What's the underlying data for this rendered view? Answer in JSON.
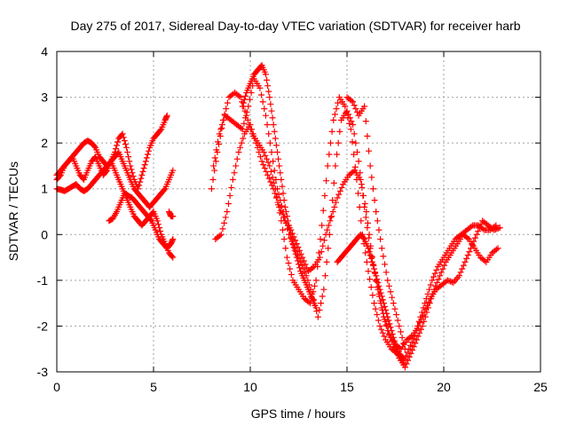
{
  "chart_data": {
    "type": "scatter",
    "title": "Day 275 of 2017, Sidereal Day-to-day VTEC variation (SDTVAR) for receiver harb",
    "xlabel": "GPS time / hours",
    "ylabel": "SDTVAR / TECUs",
    "xlim": [
      0,
      25
    ],
    "ylim": [
      -3,
      4
    ],
    "xticks": [
      "0",
      "5",
      "10",
      "15",
      "20",
      "25"
    ],
    "yticks": [
      "-3",
      "-2",
      "-1",
      "0",
      "1",
      "2",
      "3",
      "4"
    ],
    "grid": true,
    "marker": "+",
    "color": "#ff0000",
    "series": [
      {
        "x": [
          0.0,
          0.2,
          0.4,
          0.6,
          0.8,
          1.0,
          1.2,
          1.4,
          1.6,
          1.8,
          2.0,
          2.2,
          2.4,
          2.6,
          2.8,
          3.0,
          3.2,
          3.4,
          3.6,
          3.8,
          4.0,
          4.2,
          4.4,
          4.6,
          4.8,
          5.0,
          5.2,
          5.4,
          5.6,
          5.7
        ],
        "y": [
          1.3,
          1.4,
          1.5,
          1.6,
          1.7,
          1.8,
          1.9,
          2.0,
          2.05,
          2.0,
          1.9,
          1.7,
          1.6,
          1.5,
          1.6,
          1.8,
          2.1,
          2.2,
          1.9,
          1.5,
          1.2,
          1.0,
          1.3,
          1.6,
          1.9,
          2.1,
          2.2,
          2.3,
          2.5,
          2.6
        ]
      },
      {
        "x": [
          0.0,
          0.2,
          0.4,
          0.6,
          0.8,
          1.0,
          1.2,
          1.4,
          1.6,
          1.8,
          2.0,
          2.2,
          2.4,
          2.6,
          2.8,
          3.0,
          3.2,
          3.4,
          3.6,
          3.8,
          4.0,
          4.2,
          4.4,
          4.6,
          4.8,
          5.0,
          5.2,
          5.4,
          5.6,
          5.8,
          6.0
        ],
        "y": [
          1.2,
          1.3,
          1.5,
          1.6,
          1.7,
          1.5,
          1.3,
          1.2,
          1.4,
          1.6,
          1.7,
          1.5,
          1.3,
          1.4,
          1.6,
          1.7,
          1.8,
          1.6,
          1.4,
          1.2,
          1.0,
          0.9,
          0.8,
          0.7,
          0.6,
          0.7,
          0.8,
          0.9,
          1.0,
          1.2,
          1.4
        ]
      },
      {
        "x": [
          0.0,
          0.2,
          0.4,
          0.6,
          0.8,
          1.0,
          1.2,
          1.4,
          1.6,
          1.8,
          2.0,
          2.2,
          2.4,
          2.6,
          2.8,
          3.0,
          3.2,
          3.4,
          3.6,
          3.8,
          4.0,
          4.2,
          4.4,
          4.6,
          4.8,
          5.0,
          5.2,
          5.4,
          5.6,
          5.8,
          6.0
        ],
        "y": [
          1.0,
          0.98,
          0.95,
          1.0,
          1.05,
          1.1,
          1.0,
          0.95,
          1.0,
          1.1,
          1.2,
          1.3,
          1.4,
          1.5,
          1.6,
          1.4,
          1.2,
          1.0,
          0.8,
          0.6,
          0.4,
          0.3,
          0.2,
          0.3,
          0.4,
          0.5,
          0.3,
          0.0,
          -0.2,
          -0.4,
          -0.5
        ]
      },
      {
        "x": [
          2.7,
          2.9,
          3.1,
          3.3,
          3.5,
          3.7,
          3.9,
          4.1,
          4.3,
          4.5,
          4.7,
          4.9,
          5.1,
          5.3,
          5.5,
          5.7,
          5.9,
          6.0
        ],
        "y": [
          0.3,
          0.35,
          0.5,
          0.7,
          0.9,
          0.85,
          0.8,
          0.7,
          0.6,
          0.5,
          0.4,
          0.3,
          0.1,
          -0.1,
          -0.2,
          -0.3,
          -0.2,
          -0.1
        ]
      },
      {
        "x": [
          5.8,
          5.9,
          6.0
        ],
        "y": [
          0.5,
          0.4,
          0.4
        ]
      },
      {
        "x": [
          8.0,
          8.3,
          8.6,
          8.9,
          9.2,
          9.5,
          9.8,
          10.1,
          10.4,
          10.7,
          11.0,
          11.3,
          11.6,
          11.9,
          12.2,
          12.5,
          12.8,
          13.1,
          13.4,
          13.7,
          14.0,
          14.3,
          14.6,
          14.9,
          15.2,
          15.5,
          15.8,
          16.1,
          16.4,
          16.7,
          17.0,
          17.3,
          17.6,
          17.9,
          18.2,
          18.5,
          18.8,
          19.1,
          19.4,
          19.7,
          20.0,
          20.3,
          20.6,
          20.9,
          21.2,
          21.5,
          21.8,
          22.1,
          22.4,
          22.7
        ],
        "y": [
          1.0,
          1.8,
          2.5,
          3.0,
          3.1,
          3.0,
          2.6,
          2.2,
          2.0,
          1.8,
          1.5,
          1.0,
          0.3,
          -0.5,
          -1.0,
          -1.2,
          -1.4,
          -1.5,
          -1.0,
          0.2,
          1.5,
          2.5,
          3.0,
          2.8,
          2.3,
          1.2,
          0.0,
          -0.8,
          -1.5,
          -2.0,
          -2.3,
          -2.5,
          -2.6,
          -2.8,
          -2.5,
          -2.2,
          -1.8,
          -1.4,
          -1.0,
          -0.7,
          -0.5,
          -0.3,
          -0.1,
          0.0,
          0.1,
          0.2,
          0.2,
          0.1,
          0.1,
          0.2
        ]
      },
      {
        "x": [
          8.1,
          8.4,
          8.7,
          9.0,
          9.3,
          9.6,
          9.9,
          10.2,
          10.5,
          10.8,
          11.1,
          11.4,
          11.7,
          12.0,
          12.3,
          12.6,
          12.9,
          13.2,
          13.5,
          13.8,
          14.1,
          14.4,
          14.7,
          15.0,
          15.3,
          15.6,
          15.9,
          16.2,
          16.5,
          16.8,
          17.1,
          17.4,
          17.7,
          18.0,
          18.3,
          18.6,
          18.9,
          19.2,
          19.5,
          19.8,
          20.1,
          20.4,
          20.7,
          21.0,
          21.3,
          21.6,
          21.9,
          22.2,
          22.5,
          22.8
        ],
        "y": [
          1.5,
          2.2,
          2.6,
          2.5,
          2.4,
          2.3,
          2.8,
          3.4,
          3.2,
          2.6,
          1.8,
          1.0,
          0.5,
          0.0,
          -0.3,
          -0.6,
          -0.9,
          -1.3,
          -1.8,
          -1.2,
          0.0,
          1.5,
          2.5,
          2.7,
          2.4,
          1.6,
          0.6,
          -0.3,
          -1.0,
          -1.6,
          -2.1,
          -2.4,
          -2.7,
          -2.9,
          -2.6,
          -2.3,
          -2.0,
          -1.6,
          -1.2,
          -0.9,
          -0.6,
          -0.4,
          -0.2,
          0.0,
          -0.1,
          -0.3,
          -0.5,
          -0.6,
          -0.4,
          -0.3
        ]
      },
      {
        "x": [
          8.2,
          8.5,
          8.8,
          9.1,
          9.4,
          9.7,
          10.0,
          10.3,
          10.6,
          10.9,
          11.2,
          11.5,
          11.8,
          12.1,
          12.4,
          12.7,
          13.0,
          13.3,
          13.6,
          13.9,
          14.2,
          14.5,
          14.8,
          15.1,
          15.4,
          15.7,
          16.0,
          16.3,
          16.6,
          16.9,
          17.2,
          17.5,
          17.8,
          18.1,
          18.4,
          18.7,
          19.0,
          19.3,
          19.6,
          19.9,
          20.2,
          20.5,
          20.8,
          21.1,
          21.4,
          21.7,
          22.0,
          22.3,
          22.6,
          22.9
        ],
        "y": [
          -0.1,
          0.0,
          0.5,
          1.2,
          1.8,
          2.2,
          2.4,
          2.0,
          1.6,
          1.3,
          1.0,
          0.6,
          0.3,
          0.1,
          -0.2,
          -0.5,
          -0.8,
          -0.7,
          -0.5,
          0.0,
          0.4,
          0.8,
          1.1,
          1.3,
          1.4,
          1.2,
          0.5,
          -0.5,
          -1.2,
          -1.8,
          -2.2,
          -2.4,
          -2.5,
          -2.3,
          -2.2,
          -2.0,
          -1.7,
          -1.4,
          -1.2,
          -1.1,
          -1.0,
          -1.05,
          -0.9,
          -0.6,
          -0.3,
          0.0,
          0.3,
          0.2,
          0.1,
          0.15
        ]
      },
      {
        "x": [
          9.6,
          9.8,
          10.0,
          10.2,
          10.4,
          10.6,
          10.8,
          11.0,
          11.2,
          11.4,
          11.6,
          11.8,
          12.0,
          12.2,
          12.4,
          12.6,
          12.8,
          13.0,
          13.2,
          13.4
        ],
        "y": [
          2.8,
          3.1,
          3.3,
          3.5,
          3.6,
          3.7,
          3.5,
          3.0,
          2.4,
          1.8,
          1.2,
          0.6,
          0.2,
          -0.2,
          -0.5,
          -0.8,
          -1.0,
          -1.2,
          -1.4,
          -1.6
        ]
      },
      {
        "x": [
          14.5,
          14.7,
          14.9,
          15.1,
          15.3,
          15.5,
          15.7,
          15.9,
          16.1,
          16.3,
          16.5,
          16.7,
          16.9,
          17.1,
          17.3,
          17.5,
          17.7,
          17.9
        ],
        "y": [
          -0.6,
          -0.5,
          -0.4,
          -0.3,
          -0.2,
          -0.1,
          0.0,
          -0.1,
          -0.3,
          -0.6,
          -0.9,
          -1.2,
          -1.5,
          -1.8,
          -2.1,
          -2.4,
          -2.6,
          -2.7
        ]
      },
      {
        "x": [
          15.0,
          15.3,
          15.6,
          15.9,
          16.2,
          16.5,
          16.8,
          17.1,
          17.4,
          17.7,
          18.0
        ],
        "y": [
          3.0,
          2.9,
          2.6,
          2.8,
          1.5,
          0.5,
          -0.3,
          -1.0,
          -1.5,
          -2.0,
          -2.5
        ]
      }
    ]
  }
}
